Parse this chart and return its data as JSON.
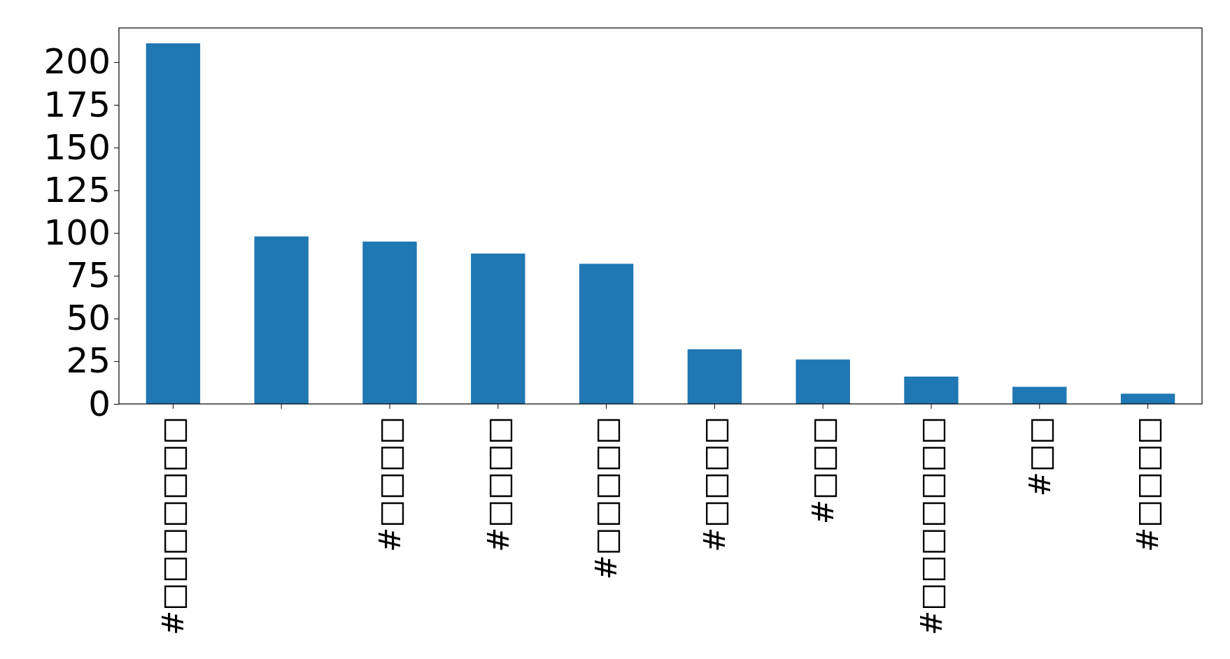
{
  "chart_data": {
    "type": "bar",
    "categories": [
      "#□□□□□□□",
      null,
      "#□□□□",
      "#□□□□",
      "#□□□□□",
      "#□□□□",
      "#□□□",
      "#□□□□□□□",
      "#□□",
      "#□□□□"
    ],
    "values": [
      211,
      98,
      95,
      88,
      82,
      32,
      26,
      16,
      10,
      6
    ],
    "color": "#1f77b4",
    "ylim": [
      0,
      220
    ],
    "yticks": [
      0,
      25,
      50,
      75,
      100,
      125,
      150,
      175,
      200
    ],
    "grid": false
  }
}
